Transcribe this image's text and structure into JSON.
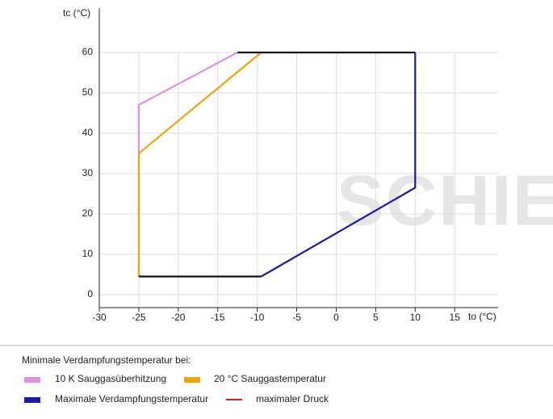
{
  "chart_data": {
    "type": "line",
    "y_label": "tc (°C)",
    "x_label": "to (°C)",
    "watermark": "SCHIESSL",
    "legend_title": "Minimale Verdampfungstemperatur bei:",
    "xlim": [
      -30,
      20.5
    ],
    "xticks": [
      -30,
      -25,
      -20,
      -15,
      -10,
      -5,
      0,
      5,
      10,
      15
    ],
    "ylim": [
      -3.2,
      71
    ],
    "yticks": [
      0,
      10,
      20,
      30,
      40,
      50,
      60
    ],
    "grid": true,
    "series": [
      {
        "name": "10 K Sauggasüberhitzung",
        "color": "#e58ee5",
        "x": [
          -12.5,
          -25,
          -25
        ],
        "values": [
          60,
          47,
          35
        ]
      },
      {
        "name": "20 °C Sauggastemperatur",
        "color": "#f0a30a",
        "x": [
          -9.5,
          -25,
          -25
        ],
        "values": [
          60,
          35,
          4.5
        ]
      },
      {
        "name": "Maximale Verdampfungstemperatur",
        "color": "#1a1aa6",
        "x": [
          -9.5,
          10,
          10
        ],
        "values": [
          4.5,
          26.5,
          60
        ]
      },
      {
        "name": "maximaler Druck",
        "color": "#e31a1c",
        "x": [],
        "values": []
      },
      {
        "color": "#111111",
        "x": [
          -25,
          -9.5
        ],
        "values": [
          4.5,
          4.5
        ]
      },
      {
        "color": "#111111",
        "x": [
          -12.5,
          10
        ],
        "values": [
          60,
          60
        ]
      }
    ]
  }
}
